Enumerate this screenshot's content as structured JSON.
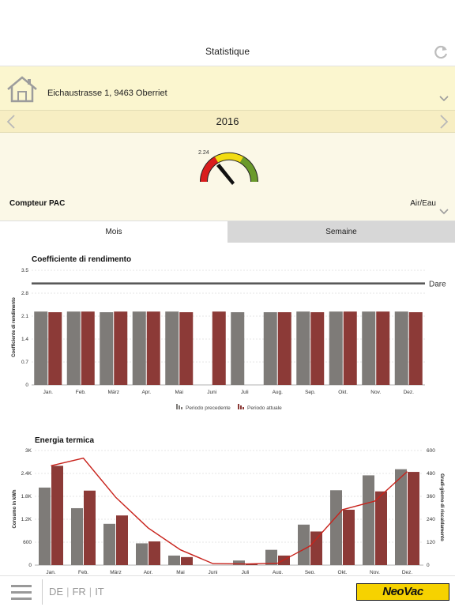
{
  "header": {
    "title": "Statistique",
    "refresh_icon": "refresh-icon"
  },
  "building": {
    "id": "9998000100",
    "address": "Eichaustrasse 1, 9463 Oberriet",
    "icon": "house-icon"
  },
  "year": {
    "label": "2016"
  },
  "meter": {
    "gauge_value": "2.24",
    "label": "Compteur PAC",
    "type": "Air/Eau"
  },
  "tabs": {
    "mois": "Mois",
    "semaine": "Semaine"
  },
  "charts": [
    {
      "type": "bar",
      "title": "Coefficiente di rendimento",
      "ylabel": "Coefficiente di rendimento",
      "ylim": [
        0,
        3.5
      ],
      "yticks": [
        "0",
        "0.7",
        "1.4",
        "2.1",
        "2.8",
        "3.5"
      ],
      "categories": [
        "Jan.",
        "Feb.",
        "März",
        "Apr.",
        "Mai",
        "Juni",
        "Juli",
        "Aug.",
        "Sep.",
        "Okt.",
        "Nov.",
        "Dez."
      ],
      "series": [
        {
          "name": "Periodo precedente",
          "color": "#7e7b78",
          "values": [
            2.24,
            2.24,
            2.22,
            2.24,
            2.24,
            null,
            2.22,
            2.22,
            2.24,
            2.24,
            2.24,
            2.24
          ]
        },
        {
          "name": "Periodo attuale",
          "color": "#8c3a37",
          "values": [
            2.22,
            2.24,
            2.24,
            2.24,
            2.22,
            2.24,
            null,
            2.22,
            2.22,
            2.24,
            2.24,
            2.22
          ]
        }
      ],
      "reference_line": {
        "label": "Dare",
        "value": 3.1
      }
    },
    {
      "type": "bar+line",
      "title": "Energia termica",
      "ylabel": "Consumo in kWh",
      "y2label": "Gradi-giorno di riscaldamento",
      "ylim": [
        0,
        3000
      ],
      "y2lim": [
        0,
        600
      ],
      "yticks": [
        "0",
        "600",
        "1.2K",
        "1.8K",
        "2.4K",
        "3K"
      ],
      "y2ticks": [
        "0",
        "120",
        "240",
        "360",
        "480",
        "600"
      ],
      "categories": [
        "Jan.",
        "Feb.",
        "März",
        "Apr.",
        "Mai",
        "Juni",
        "Juli",
        "Aug.",
        "Sep.",
        "Okt.",
        "Nov.",
        "Dez."
      ],
      "series": [
        {
          "name": "Periodo precedente",
          "color": "#7e7b78",
          "values": [
            2030,
            1490,
            1080,
            570,
            250,
            0,
            120,
            400,
            1060,
            1960,
            2350,
            2510
          ]
        },
        {
          "name": "Periodo attuale",
          "color": "#8c3a37",
          "values": [
            2600,
            1950,
            1300,
            620,
            210,
            0,
            30,
            250,
            880,
            1450,
            1930,
            2440
          ]
        }
      ],
      "line": {
        "color": "#c8221b",
        "values": [
          520,
          560,
          355,
          195,
          80,
          8,
          6,
          10,
          100,
          290,
          335,
          490
        ]
      }
    }
  ],
  "footer": {
    "languages": [
      "DE",
      "FR",
      "IT"
    ],
    "logo": "NeoVac",
    "menu_icon": "hamburger-menu-icon"
  }
}
